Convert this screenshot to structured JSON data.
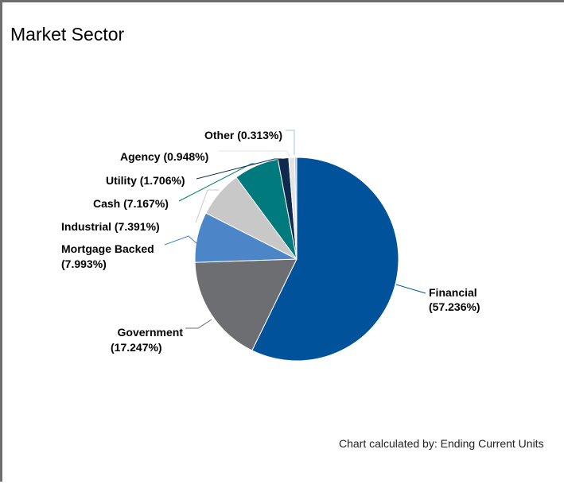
{
  "title": "Market Sector",
  "footnote": "Chart calculated by: Ending Current Units",
  "chart_data": {
    "type": "pie",
    "title": "Market Sector",
    "slices": [
      {
        "name": "Financial",
        "value": 57.236,
        "label": "Financial",
        "pct": "(57.236%)",
        "color": "#00529b"
      },
      {
        "name": "Government",
        "value": 17.247,
        "label": "Government",
        "pct": "(17.247%)",
        "color": "#6d6e71"
      },
      {
        "name": "Mortgage Backed",
        "value": 7.993,
        "label": "Mortgage Backed",
        "pct": "(7.993%)",
        "color": "#4c86c8"
      },
      {
        "name": "Industrial",
        "value": 7.391,
        "label": "Industrial (7.391%)",
        "pct": "",
        "color": "#c8c8c8"
      },
      {
        "name": "Cash",
        "value": 7.167,
        "label": "Cash (7.167%)",
        "pct": "",
        "color": "#007a7c"
      },
      {
        "name": "Utility",
        "value": 1.706,
        "label": "Utility (1.706%)",
        "pct": "",
        "color": "#0f2a4e"
      },
      {
        "name": "Agency",
        "value": 0.948,
        "label": "Agency (0.948%)",
        "pct": "",
        "color": "#e3e3e3"
      },
      {
        "name": "Other",
        "value": 0.313,
        "label": "Other (0.313%)",
        "pct": "",
        "color": "#9dc3e6"
      }
    ],
    "start_angle": "12 o'clock",
    "direction": "clockwise"
  }
}
